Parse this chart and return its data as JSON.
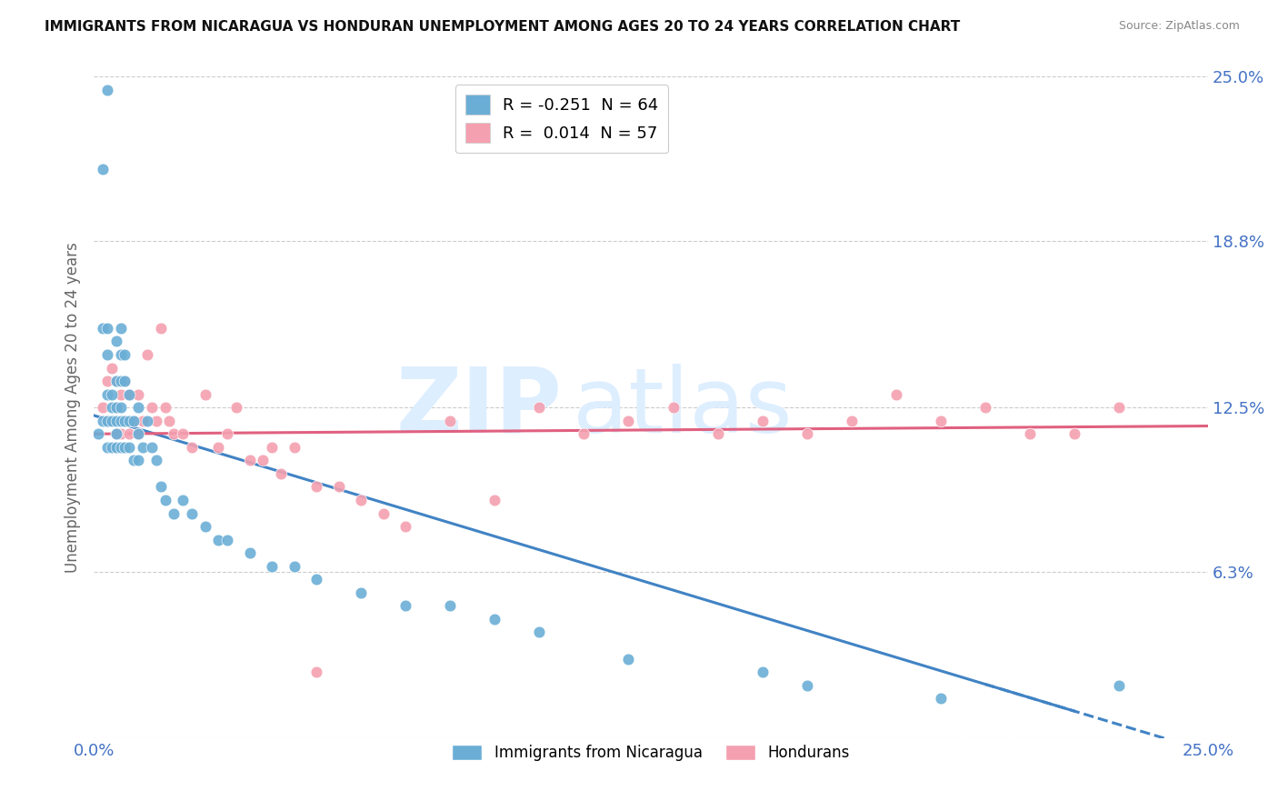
{
  "title": "IMMIGRANTS FROM NICARAGUA VS HONDURAN UNEMPLOYMENT AMONG AGES 20 TO 24 YEARS CORRELATION CHART",
  "source": "Source: ZipAtlas.com",
  "ylabel": "Unemployment Among Ages 20 to 24 years",
  "xticklabels": [
    "0.0%",
    "25.0%"
  ],
  "yticklabels": [
    "25.0%",
    "18.8%",
    "12.5%",
    "6.3%",
    ""
  ],
  "ytick_vals": [
    0.25,
    0.188,
    0.125,
    0.063,
    0.0
  ],
  "xlim": [
    0.0,
    0.25
  ],
  "ylim": [
    0.0,
    0.25
  ],
  "legend1_label": "R = -0.251  N = 64",
  "legend2_label": "R =  0.014  N = 57",
  "legend1_color": "#6aaed6",
  "legend2_color": "#f4a0b0",
  "series1_color": "#6aaed6",
  "series2_color": "#f4a0b0",
  "trend1_color": "#4183c4",
  "trend2_color": "#e06080",
  "watermark_color": "#ddeeff",
  "grid_color": "#cccccc",
  "background_color": "#ffffff",
  "legend_xlabel": "Immigrants from Nicaragua",
  "legend_ylabel": "Hondurans",
  "trend1_x0": 0.0,
  "trend1_y0": 0.122,
  "trend1_x1": 0.25,
  "trend1_y1": -0.005,
  "trend2_x0": 0.0,
  "trend2_y0": 0.115,
  "trend2_x1": 0.25,
  "trend2_y1": 0.118,
  "series1_x": [
    0.001,
    0.002,
    0.002,
    0.002,
    0.003,
    0.003,
    0.003,
    0.003,
    0.003,
    0.004,
    0.004,
    0.004,
    0.004,
    0.005,
    0.005,
    0.005,
    0.005,
    0.005,
    0.005,
    0.006,
    0.006,
    0.006,
    0.006,
    0.006,
    0.006,
    0.007,
    0.007,
    0.007,
    0.007,
    0.008,
    0.008,
    0.008,
    0.009,
    0.009,
    0.01,
    0.01,
    0.01,
    0.011,
    0.012,
    0.013,
    0.014,
    0.015,
    0.016,
    0.018,
    0.02,
    0.022,
    0.025,
    0.028,
    0.03,
    0.035,
    0.04,
    0.045,
    0.05,
    0.06,
    0.07,
    0.08,
    0.09,
    0.1,
    0.12,
    0.15,
    0.16,
    0.19,
    0.003,
    0.23
  ],
  "series1_y": [
    0.115,
    0.215,
    0.155,
    0.12,
    0.155,
    0.145,
    0.13,
    0.12,
    0.11,
    0.13,
    0.125,
    0.12,
    0.11,
    0.15,
    0.135,
    0.125,
    0.12,
    0.115,
    0.11,
    0.155,
    0.145,
    0.135,
    0.125,
    0.12,
    0.11,
    0.145,
    0.135,
    0.12,
    0.11,
    0.13,
    0.12,
    0.11,
    0.12,
    0.105,
    0.125,
    0.115,
    0.105,
    0.11,
    0.12,
    0.11,
    0.105,
    0.095,
    0.09,
    0.085,
    0.09,
    0.085,
    0.08,
    0.075,
    0.075,
    0.07,
    0.065,
    0.065,
    0.06,
    0.055,
    0.05,
    0.05,
    0.045,
    0.04,
    0.03,
    0.025,
    0.02,
    0.015,
    0.245,
    0.02
  ],
  "series2_x": [
    0.002,
    0.003,
    0.003,
    0.004,
    0.005,
    0.005,
    0.006,
    0.006,
    0.007,
    0.007,
    0.008,
    0.008,
    0.009,
    0.01,
    0.01,
    0.011,
    0.012,
    0.013,
    0.014,
    0.015,
    0.016,
    0.017,
    0.018,
    0.02,
    0.022,
    0.025,
    0.028,
    0.03,
    0.032,
    0.035,
    0.038,
    0.04,
    0.042,
    0.045,
    0.05,
    0.055,
    0.06,
    0.065,
    0.07,
    0.08,
    0.09,
    0.1,
    0.11,
    0.12,
    0.13,
    0.14,
    0.15,
    0.16,
    0.17,
    0.18,
    0.19,
    0.2,
    0.21,
    0.22,
    0.005,
    0.05,
    0.23
  ],
  "series2_y": [
    0.125,
    0.135,
    0.12,
    0.14,
    0.135,
    0.125,
    0.13,
    0.115,
    0.135,
    0.12,
    0.13,
    0.115,
    0.12,
    0.13,
    0.115,
    0.12,
    0.145,
    0.125,
    0.12,
    0.155,
    0.125,
    0.12,
    0.115,
    0.115,
    0.11,
    0.13,
    0.11,
    0.115,
    0.125,
    0.105,
    0.105,
    0.11,
    0.1,
    0.11,
    0.095,
    0.095,
    0.09,
    0.085,
    0.08,
    0.12,
    0.09,
    0.125,
    0.115,
    0.12,
    0.125,
    0.115,
    0.12,
    0.115,
    0.12,
    0.13,
    0.12,
    0.125,
    0.115,
    0.115,
    0.115,
    0.025,
    0.125
  ]
}
